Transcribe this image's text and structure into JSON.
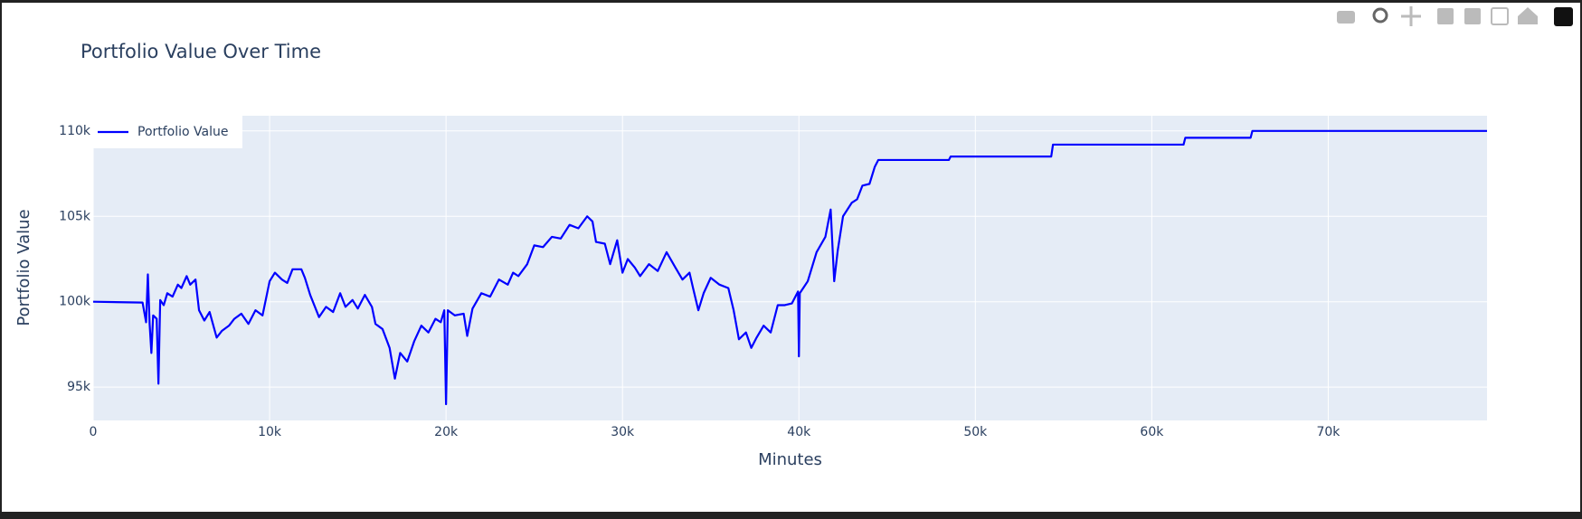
{
  "chart_data": {
    "type": "line",
    "title": "Portfolio Value Over Time",
    "x_label": "Minutes",
    "y_label": "Portfolio Value",
    "x": [
      0,
      2800,
      3000,
      3100,
      3200,
      3300,
      3400,
      3600,
      3700,
      3800,
      4000,
      4200,
      4500,
      4800,
      5000,
      5300,
      5500,
      5800,
      6000,
      6300,
      6600,
      7000,
      7300,
      7700,
      8000,
      8400,
      8800,
      9200,
      9600,
      10000,
      10300,
      10700,
      11000,
      11300,
      11800,
      12000,
      12300,
      12800,
      13200,
      13600,
      14000,
      14300,
      14700,
      15000,
      15400,
      15800,
      16000,
      16400,
      16800,
      17100,
      17400,
      17800,
      18200,
      18600,
      19000,
      19400,
      19700,
      19900,
      20000,
      20100,
      20500,
      21000,
      21200,
      21500,
      22000,
      22500,
      23000,
      23500,
      23800,
      24100,
      24600,
      25000,
      25500,
      26000,
      26500,
      27000,
      27500,
      28000,
      28300,
      28500,
      29000,
      29300,
      29700,
      30000,
      30300,
      30700,
      31000,
      31500,
      32000,
      32500,
      33000,
      33400,
      33800,
      34000,
      34300,
      34600,
      35000,
      35500,
      36000,
      36300,
      36600,
      37000,
      37300,
      37600,
      38000,
      38400,
      38800,
      39200,
      39600,
      39950,
      40000,
      40050,
      40500,
      41000,
      41500,
      41800,
      42000,
      42200,
      42500,
      43000,
      43300,
      43600,
      44000,
      44300,
      44500,
      48500,
      48600,
      54300,
      54400,
      61800,
      61900,
      65600,
      65700,
      79000
    ],
    "series": [
      {
        "name": "Portfolio Value",
        "color": "#0000ff",
        "values": [
          100000,
          99950,
          98800,
          101600,
          98700,
          97000,
          99200,
          99000,
          95200,
          100100,
          99800,
          100500,
          100300,
          101000,
          100800,
          101500,
          101000,
          101300,
          99500,
          98900,
          99400,
          97900,
          98300,
          98600,
          99000,
          99300,
          98700,
          99500,
          99200,
          101200,
          101700,
          101300,
          101100,
          101900,
          101900,
          101400,
          100400,
          99100,
          99700,
          99400,
          100500,
          99700,
          100100,
          99600,
          100400,
          99700,
          98700,
          98400,
          97300,
          95500,
          97000,
          96500,
          97700,
          98600,
          98200,
          99000,
          98800,
          99500,
          94000,
          99500,
          99200,
          99300,
          98000,
          99600,
          100500,
          100300,
          101300,
          101000,
          101700,
          101500,
          102200,
          103300,
          103200,
          103800,
          103700,
          104500,
          104300,
          105000,
          104700,
          103500,
          103400,
          102200,
          103600,
          101700,
          102500,
          102000,
          101500,
          102200,
          101800,
          102900,
          102000,
          101300,
          101700,
          100800,
          99500,
          100500,
          101400,
          101000,
          100800,
          99500,
          97800,
          98200,
          97300,
          97900,
          98600,
          98200,
          99800,
          99800,
          99900,
          100600,
          96800,
          100500,
          101200,
          102900,
          103800,
          105400,
          101200,
          103000,
          105000,
          105800,
          106000,
          106800,
          106900,
          107900,
          108300,
          108300,
          108500,
          108500,
          109200,
          109200,
          109600,
          109600,
          110000,
          110000
        ]
      }
    ],
    "xlim": [
      0,
      79000
    ],
    "xticks": [
      {
        "value": 0,
        "label": "0"
      },
      {
        "value": 10000,
        "label": "10k"
      },
      {
        "value": 20000,
        "label": "20k"
      },
      {
        "value": 30000,
        "label": "30k"
      },
      {
        "value": 40000,
        "label": "40k"
      },
      {
        "value": 50000,
        "label": "50k"
      },
      {
        "value": 60000,
        "label": "60k"
      },
      {
        "value": 70000,
        "label": "70k"
      }
    ],
    "ylim": [
      93050,
      110890
    ],
    "yticks": [
      {
        "value": 95000,
        "label": "95k"
      },
      {
        "value": 100000,
        "label": "100k"
      },
      {
        "value": 105000,
        "label": "105k"
      },
      {
        "value": 110000,
        "label": "110k"
      }
    ],
    "grid": true,
    "legend": "top-left"
  }
}
